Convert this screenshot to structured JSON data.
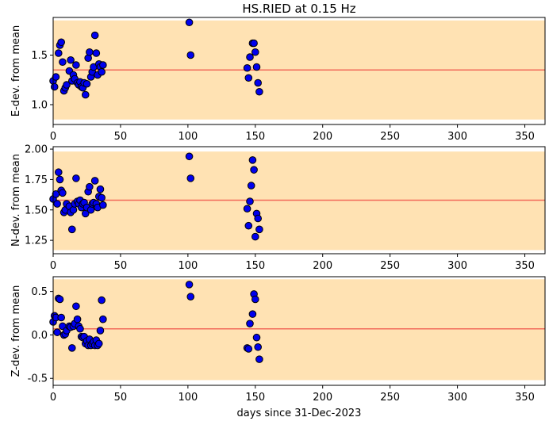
{
  "figure": {
    "title": "HS.RIED at 0.15 Hz",
    "xlabel": "days since 31-Dec-2023"
  },
  "chart_data": [
    {
      "type": "scatter",
      "title": "HS.RIED at 0.15 Hz",
      "xlabel": "",
      "ylabel": "E-dev. from mean",
      "xlim": [
        0,
        365
      ],
      "ylim": [
        0.8,
        1.88
      ],
      "xticks": [
        0,
        50,
        100,
        150,
        200,
        250,
        300,
        350
      ],
      "yticks": [
        1.0,
        1.5
      ],
      "band": [
        0.85,
        1.85
      ],
      "mean_line": 1.35,
      "colors": {
        "band": "#ffe2b3",
        "mean_line": "#f26b5b",
        "marker_fill": "#0000ee",
        "marker_edge": "#000000"
      },
      "x": [
        0,
        1,
        2,
        4,
        5,
        6,
        7,
        8,
        9,
        10,
        12,
        13,
        14,
        15,
        16,
        17,
        18,
        19,
        20,
        21,
        22,
        23,
        24,
        25,
        26,
        27,
        28,
        29,
        30,
        31,
        32,
        33,
        34,
        35,
        36,
        37,
        101,
        102,
        144,
        145,
        146,
        148,
        149,
        150,
        151,
        152,
        153
      ],
      "y": [
        1.24,
        1.18,
        1.28,
        1.52,
        1.6,
        1.63,
        1.43,
        1.14,
        1.17,
        1.2,
        1.34,
        1.45,
        1.24,
        1.3,
        1.26,
        1.4,
        1.22,
        1.2,
        1.23,
        1.18,
        1.17,
        1.22,
        1.1,
        1.21,
        1.47,
        1.53,
        1.28,
        1.33,
        1.38,
        1.7,
        1.52,
        1.3,
        1.41,
        1.38,
        1.33,
        1.4,
        1.83,
        1.5,
        1.37,
        1.27,
        1.48,
        1.62,
        1.62,
        1.53,
        1.38,
        1.22,
        1.13
      ]
    },
    {
      "type": "scatter",
      "xlabel": "",
      "ylabel": "N-dev. from mean",
      "xlim": [
        0,
        365
      ],
      "ylim": [
        1.14,
        2.02
      ],
      "xticks": [
        0,
        50,
        100,
        150,
        200,
        250,
        300,
        350
      ],
      "yticks": [
        1.25,
        1.5,
        1.75,
        2.0
      ],
      "band": [
        1.17,
        1.98
      ],
      "mean_line": 1.58,
      "colors": {
        "band": "#ffe2b3",
        "mean_line": "#f26b5b",
        "marker_fill": "#0000ee",
        "marker_edge": "#000000"
      },
      "x": [
        0,
        2,
        3,
        4,
        5,
        6,
        7,
        8,
        9,
        10,
        12,
        13,
        14,
        15,
        16,
        17,
        18,
        19,
        20,
        21,
        22,
        23,
        24,
        25,
        26,
        27,
        28,
        29,
        30,
        31,
        32,
        33,
        34,
        35,
        36,
        37,
        101,
        102,
        144,
        145,
        146,
        147,
        148,
        149,
        150,
        151,
        152,
        153
      ],
      "y": [
        1.59,
        1.63,
        1.55,
        1.81,
        1.75,
        1.66,
        1.64,
        1.48,
        1.5,
        1.55,
        1.53,
        1.48,
        1.34,
        1.5,
        1.55,
        1.76,
        1.57,
        1.55,
        1.58,
        1.52,
        1.55,
        1.56,
        1.47,
        1.52,
        1.65,
        1.69,
        1.5,
        1.55,
        1.56,
        1.74,
        1.55,
        1.52,
        1.61,
        1.67,
        1.6,
        1.54,
        1.94,
        1.76,
        1.51,
        1.37,
        1.57,
        1.7,
        1.91,
        1.83,
        1.28,
        1.47,
        1.43,
        1.34
      ]
    },
    {
      "type": "scatter",
      "xlabel": "days since 31-Dec-2023",
      "ylabel": "Z-dev. from mean",
      "xlim": [
        0,
        365
      ],
      "ylim": [
        -0.58,
        0.67
      ],
      "xticks": [
        0,
        50,
        100,
        150,
        200,
        250,
        300,
        350
      ],
      "yticks": [
        -0.5,
        0.0,
        0.5
      ],
      "band": [
        -0.52,
        0.64
      ],
      "mean_line": 0.07,
      "colors": {
        "band": "#ffe2b3",
        "mean_line": "#f26b5b",
        "marker_fill": "#0000ee",
        "marker_edge": "#000000"
      },
      "x": [
        0,
        1,
        2,
        3,
        4,
        5,
        6,
        7,
        8,
        9,
        10,
        12,
        13,
        14,
        15,
        16,
        17,
        18,
        19,
        20,
        21,
        22,
        23,
        24,
        25,
        26,
        27,
        28,
        29,
        30,
        31,
        32,
        33,
        34,
        35,
        36,
        37,
        101,
        102,
        144,
        145,
        146,
        148,
        149,
        150,
        151,
        152,
        153
      ],
      "y": [
        0.15,
        0.22,
        0.2,
        0.03,
        0.42,
        0.41,
        0.2,
        0.1,
        0.0,
        0.01,
        0.05,
        0.1,
        0.09,
        -0.15,
        0.1,
        0.13,
        0.33,
        0.18,
        0.1,
        0.07,
        -0.02,
        -0.03,
        -0.02,
        -0.1,
        -0.07,
        -0.12,
        -0.05,
        -0.12,
        -0.1,
        -0.08,
        -0.12,
        -0.06,
        -0.12,
        -0.1,
        0.05,
        0.4,
        0.18,
        0.58,
        0.44,
        -0.15,
        -0.16,
        0.13,
        0.24,
        0.47,
        0.41,
        -0.03,
        -0.14,
        -0.28
      ]
    }
  ]
}
